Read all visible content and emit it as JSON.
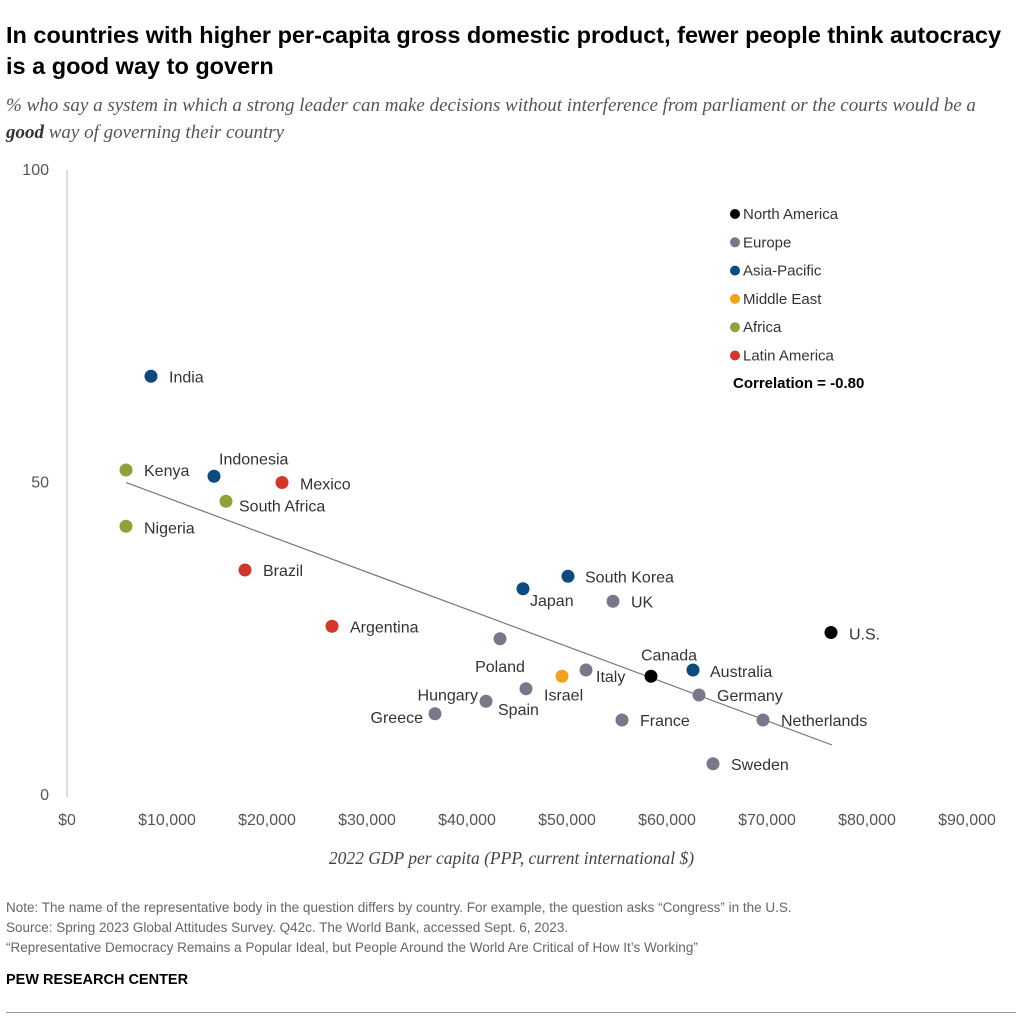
{
  "header": {
    "title": "In countries with higher per-capita gross domestic product, fewer people think autocracy is a good way to govern",
    "subtitle_before": "% who say a system in which a strong leader can make decisions without interference from parliament or the courts would be a ",
    "subtitle_bold": "good",
    "subtitle_after": " way of governing their country"
  },
  "chart_data": {
    "type": "scatter",
    "title": "In countries with higher per-capita gross domestic product, fewer people think autocracy is a good way to govern",
    "xlabel": "2022 GDP per capita (PPP, current international $)",
    "ylabel": "",
    "xlim": [
      0,
      90000
    ],
    "ylim": [
      0,
      100
    ],
    "x_ticks": [
      0,
      10000,
      20000,
      30000,
      40000,
      50000,
      60000,
      70000,
      80000,
      90000
    ],
    "x_tick_labels": [
      "$0",
      "$10,000",
      "$20,000",
      "$30,000",
      "$40,000",
      "$50,000",
      "$60,000",
      "$70,000",
      "$80,000",
      "$90,000"
    ],
    "y_ticks": [
      0,
      50,
      100
    ],
    "y_tick_labels": [
      "0",
      "50",
      "100"
    ],
    "grid": false,
    "legend_position": "top-right",
    "correlation_label": "Correlation = -0.80",
    "regions": [
      {
        "name": "North America",
        "color": "#000000"
      },
      {
        "name": "Europe",
        "color": "#7b7789"
      },
      {
        "name": "Asia-Pacific",
        "color": "#0b4a7e"
      },
      {
        "name": "Middle East",
        "color": "#f3a31a"
      },
      {
        "name": "Africa",
        "color": "#8ea23b"
      },
      {
        "name": "Latin America",
        "color": "#d4362a"
      }
    ],
    "trendline": {
      "x": [
        5900,
        76500
      ],
      "y": [
        50,
        8
      ]
    },
    "points": [
      {
        "country": "India",
        "region": "Asia-Pacific",
        "x": 8400,
        "y": 67
      },
      {
        "country": "Kenya",
        "region": "Africa",
        "x": 5900,
        "y": 52
      },
      {
        "country": "Indonesia",
        "region": "Asia-Pacific",
        "x": 14700,
        "y": 51
      },
      {
        "country": "Mexico",
        "region": "Latin America",
        "x": 21500,
        "y": 50
      },
      {
        "country": "South Africa",
        "region": "Africa",
        "x": 15900,
        "y": 47
      },
      {
        "country": "Nigeria",
        "region": "Africa",
        "x": 5900,
        "y": 43
      },
      {
        "country": "Brazil",
        "region": "Latin America",
        "x": 17800,
        "y": 36
      },
      {
        "country": "Argentina",
        "region": "Latin America",
        "x": 26500,
        "y": 27
      },
      {
        "country": "South Korea",
        "region": "Asia-Pacific",
        "x": 50100,
        "y": 35
      },
      {
        "country": "Japan",
        "region": "Asia-Pacific",
        "x": 45600,
        "y": 33
      },
      {
        "country": "UK",
        "region": "Europe",
        "x": 54600,
        "y": 31
      },
      {
        "country": "Poland",
        "region": "Europe",
        "x": 43300,
        "y": 25
      },
      {
        "country": "U.S.",
        "region": "North America",
        "x": 76400,
        "y": 26
      },
      {
        "country": "Canada",
        "region": "North America",
        "x": 58400,
        "y": 19
      },
      {
        "country": "Australia",
        "region": "Asia-Pacific",
        "x": 62600,
        "y": 20
      },
      {
        "country": "Italy",
        "region": "Europe",
        "x": 51900,
        "y": 20
      },
      {
        "country": "Israel",
        "region": "Middle East",
        "x": 49500,
        "y": 19
      },
      {
        "country": "Germany",
        "region": "Europe",
        "x": 63200,
        "y": 16
      },
      {
        "country": "Hungary",
        "region": "Europe",
        "x": 41900,
        "y": 15
      },
      {
        "country": "Spain",
        "region": "Europe",
        "x": 45900,
        "y": 17
      },
      {
        "country": "Greece",
        "region": "Europe",
        "x": 36800,
        "y": 13
      },
      {
        "country": "France",
        "region": "Europe",
        "x": 55500,
        "y": 12
      },
      {
        "country": "Netherlands",
        "region": "Europe",
        "x": 69600,
        "y": 12
      },
      {
        "country": "Sweden",
        "region": "Europe",
        "x": 64600,
        "y": 5
      }
    ]
  },
  "footer": {
    "note": "Note: The name of the representative body in the question differs by country. For example, the question asks “Congress” in the U.S.",
    "source": "Source: Spring 2023 Global Attitudes Survey. Q42c. The World Bank, accessed Sept. 6, 2023.",
    "report": "“Representative Democracy Remains a Popular Ideal, but People Around the World Are Critical of How It’s Working”",
    "brand": "PEW RESEARCH CENTER"
  }
}
